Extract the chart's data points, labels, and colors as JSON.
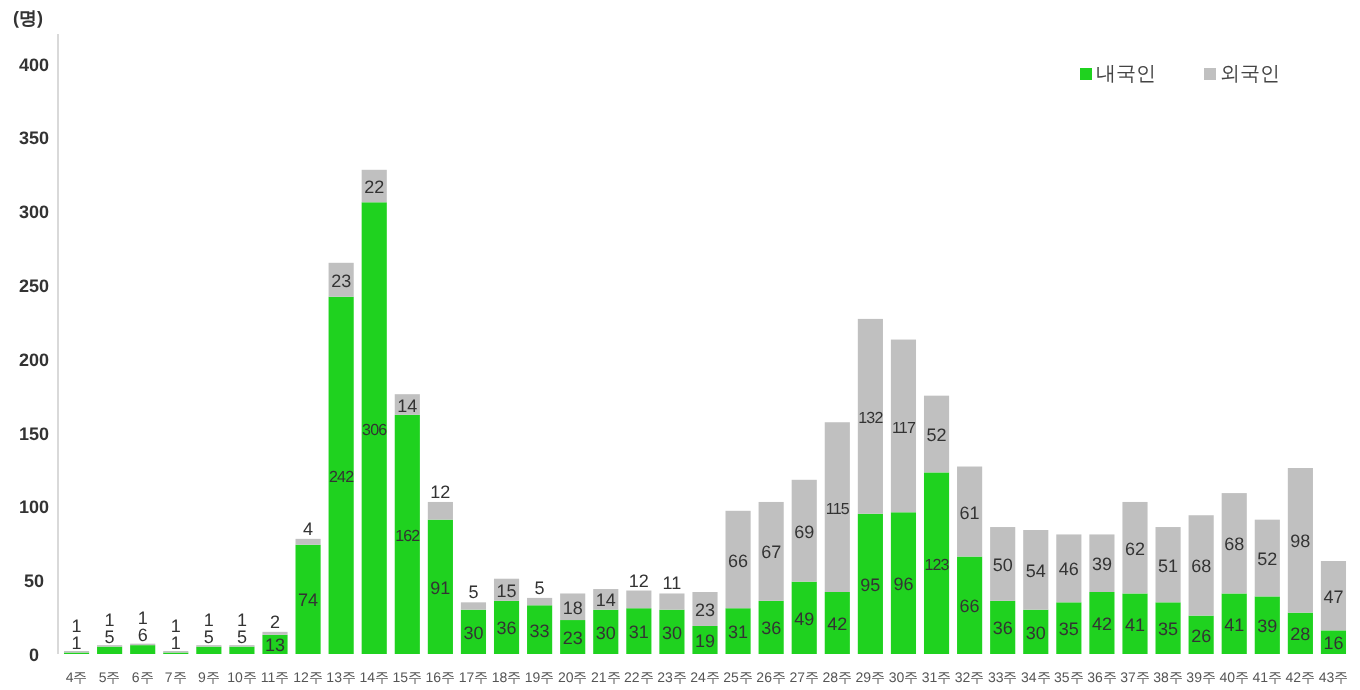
{
  "chart_data": {
    "type": "bar",
    "stacked": true,
    "ylabel": "(명)",
    "categories": [
      "4주",
      "5주",
      "6주",
      "7주",
      "9주",
      "10주",
      "11주",
      "12주",
      "13주",
      "14주",
      "15주",
      "16주",
      "17주",
      "18주",
      "19주",
      "20주",
      "21주",
      "22주",
      "23주",
      "24주",
      "25주",
      "26주",
      "27주",
      "28주",
      "29주",
      "30주",
      "31주",
      "32주",
      "33주",
      "34주",
      "35주",
      "36주",
      "37주",
      "38주",
      "39주",
      "40주",
      "41주",
      "42주",
      "43주"
    ],
    "series": [
      {
        "name": "내국인",
        "color": "#1fd21f",
        "values": [
          1,
          5,
          6,
          1,
          5,
          5,
          13,
          74,
          242,
          306,
          162,
          91,
          30,
          36,
          33,
          23,
          30,
          31,
          30,
          19,
          31,
          36,
          49,
          42,
          95,
          96,
          123,
          66,
          36,
          30,
          35,
          42,
          41,
          35,
          26,
          41,
          39,
          28,
          16
        ]
      },
      {
        "name": "외국인",
        "color": "#c0c0c0",
        "values": [
          1,
          1,
          1,
          1,
          1,
          1,
          2,
          4,
          23,
          22,
          14,
          12,
          5,
          15,
          5,
          18,
          14,
          12,
          11,
          23,
          66,
          67,
          69,
          115,
          132,
          117,
          52,
          61,
          50,
          54,
          46,
          39,
          62,
          51,
          68,
          68,
          52,
          98,
          47
        ]
      }
    ],
    "ylim": [
      0,
      420
    ],
    "yticks": [
      0,
      50,
      100,
      150,
      200,
      250,
      300,
      350,
      400
    ],
    "data_labels": true,
    "grid": false,
    "legend": "top right"
  }
}
